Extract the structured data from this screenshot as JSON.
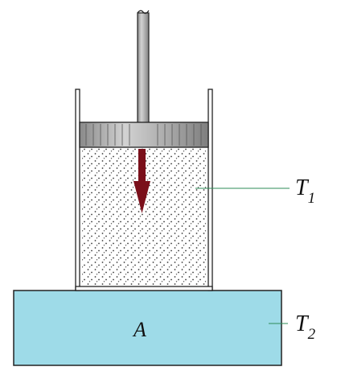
{
  "labels": {
    "reservoir": "A",
    "gas_temperature": "T",
    "gas_temperature_subscript": "1",
    "reservoir_temperature": "T",
    "reservoir_temperature_subscript": "2"
  },
  "colors": {
    "reservoir_fill": "#9edbe8",
    "outline": "#222222",
    "arrow": "#7a0f1a",
    "leader_line": "#2e8b57",
    "piston_fill": "#b7b7b7",
    "gas_dots": "#3a3a3a"
  },
  "icons": {
    "force_arrow": "down-arrow-icon"
  }
}
